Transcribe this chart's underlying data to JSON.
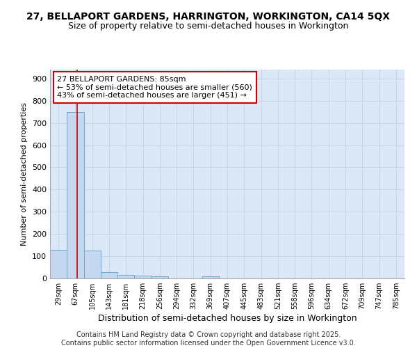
{
  "title1": "27, BELLAPORT GARDENS, HARRINGTON, WORKINGTON, CA14 5QX",
  "title2": "Size of property relative to semi-detached houses in Workington",
  "xlabel": "Distribution of semi-detached houses by size in Workington",
  "ylabel": "Number of semi-detached properties",
  "categories": [
    "29sqm",
    "67sqm",
    "105sqm",
    "143sqm",
    "181sqm",
    "218sqm",
    "256sqm",
    "294sqm",
    "332sqm",
    "369sqm",
    "407sqm",
    "445sqm",
    "483sqm",
    "521sqm",
    "558sqm",
    "596sqm",
    "634sqm",
    "672sqm",
    "709sqm",
    "747sqm",
    "785sqm"
  ],
  "values": [
    130,
    750,
    125,
    28,
    15,
    13,
    8,
    0,
    0,
    8,
    0,
    0,
    0,
    0,
    0,
    0,
    0,
    0,
    0,
    0,
    0
  ],
  "bar_color": "#c5d8f0",
  "bar_edge_color": "#6aaad4",
  "red_line_color": "#cc0000",
  "annotation_line1": "27 BELLAPORT GARDENS: 85sqm",
  "annotation_line2": "← 53% of semi-detached houses are smaller (560)",
  "annotation_line3": "43% of semi-detached houses are larger (451) →",
  "annotation_box_color": "#ffffff",
  "annotation_box_edge": "#cc0000",
  "ylim": [
    0,
    940
  ],
  "yticks": [
    0,
    100,
    200,
    300,
    400,
    500,
    600,
    700,
    800,
    900
  ],
  "grid_color": "#c8d4e8",
  "bg_color": "#dce8f8",
  "footer": "Contains HM Land Registry data © Crown copyright and database right 2025.\nContains public sector information licensed under the Open Government Licence v3.0.",
  "title_fontsize": 10,
  "subtitle_fontsize": 9,
  "tick_fontsize": 7,
  "ylabel_fontsize": 8,
  "xlabel_fontsize": 9,
  "annotation_fontsize": 8,
  "footer_fontsize": 7,
  "red_line_x": 1.1
}
